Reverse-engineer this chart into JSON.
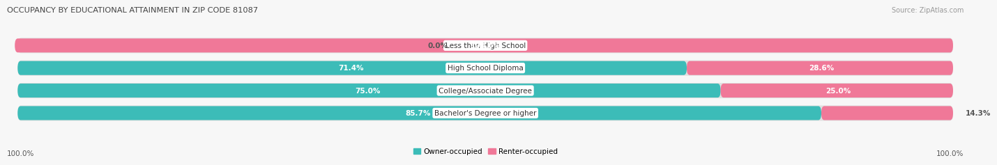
{
  "title": "OCCUPANCY BY EDUCATIONAL ATTAINMENT IN ZIP CODE 81087",
  "source": "Source: ZipAtlas.com",
  "categories": [
    "Less than High School",
    "High School Diploma",
    "College/Associate Degree",
    "Bachelor's Degree or higher"
  ],
  "owner_pct": [
    0.0,
    71.4,
    75.0,
    85.7
  ],
  "renter_pct": [
    100.0,
    28.6,
    25.0,
    14.3
  ],
  "owner_color": "#3CBCB8",
  "renter_color": "#F07898",
  "bar_bg_color": "#E0E0E0",
  "bar_bg_outer": "#CCCCCC",
  "owner_label": "Owner-occupied",
  "renter_label": "Renter-occupied",
  "figsize": [
    14.06,
    2.32
  ],
  "dpi": 100,
  "bg_color": "#F7F7F7",
  "title_color": "#444444",
  "source_color": "#999999",
  "pct_label_color_inside": "#FFFFFF",
  "pct_label_color_outside": "#555555"
}
